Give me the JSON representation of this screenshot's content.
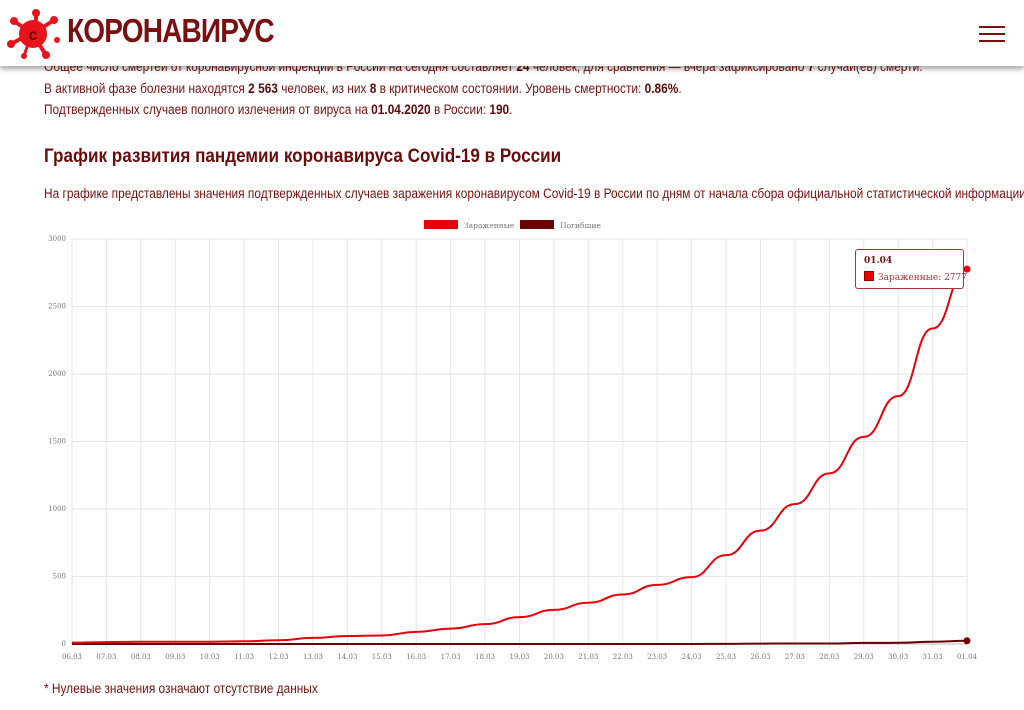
{
  "header": {
    "site_title": "КОРОНАВИРУС",
    "logo_letter": "c",
    "menu_icon": "hamburger-icon"
  },
  "stats": {
    "line1": {
      "pre": "Общее число смертей от коронавирусной инфекции в России на сегодня составляет ",
      "deaths": "24",
      "mid": " человек, для сравнения — вчера зафиксировано ",
      "yesterday": "7",
      "post": " случай(ев) смерти."
    },
    "line2": {
      "pre": "В активной фазе болезни находятся ",
      "active": "2 563",
      "mid": " человек, из них ",
      "critical": "8",
      "mid2": " в критическом состоянии. Уровень смертности: ",
      "rate": "0.86%",
      "post": "."
    },
    "line3": {
      "pre": "Подтвержденных случаев полного излечения от вируса на ",
      "date": "01.04.2020",
      "mid": " в России: ",
      "recovered": "190",
      "post": "."
    }
  },
  "section": {
    "title": "График развития пандемии коронавируса Covid-19 в России",
    "description": "На графике представлены значения подтвержденных случаев заражения коронавирусом Covid-19 в России по дням от начала сбора официальной статистической информации"
  },
  "chart_data": {
    "type": "line",
    "x": [
      "06.03",
      "07.03",
      "08.03",
      "09.03",
      "10.03",
      "11.03",
      "12.03",
      "13.03",
      "14.03",
      "15.03",
      "16.03",
      "17.03",
      "18.03",
      "19.03",
      "20.03",
      "21.03",
      "22.03",
      "23.03",
      "24.03",
      "25.03",
      "26.03",
      "27.03",
      "28.03",
      "29.03",
      "30.03",
      "31.03",
      "01.04"
    ],
    "series": [
      {
        "name": "Зараженные",
        "color": "#e8000b",
        "values": [
          10,
          14,
          17,
          17,
          17,
          20,
          28,
          45,
          59,
          63,
          90,
          114,
          147,
          199,
          253,
          306,
          367,
          438,
          495,
          658,
          840,
          1036,
          1264,
          1534,
          1836,
          2337,
          2777
        ]
      },
      {
        "name": "Погибшие",
        "color": "#6b0000",
        "values": [
          0,
          0,
          0,
          0,
          0,
          0,
          0,
          0,
          0,
          0,
          0,
          0,
          0,
          0,
          0,
          0,
          0,
          0,
          0,
          1,
          3,
          4,
          4,
          8,
          9,
          17,
          24
        ]
      }
    ],
    "ylim": [
      0,
      3000
    ],
    "yticks": [
      0,
      500,
      1000,
      1500,
      2000,
      2500,
      3000
    ],
    "grid": true,
    "legend": "top-center",
    "tooltip": {
      "title": "01.04",
      "label": "Зараженные: 2777"
    }
  },
  "footnote": "* Нулевые значения означают отсутствие данных"
}
